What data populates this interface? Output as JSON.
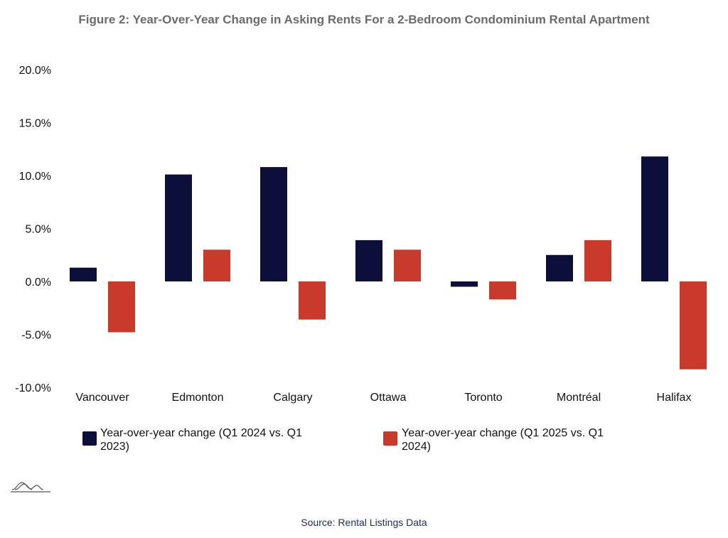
{
  "chart_data": {
    "type": "bar",
    "title": "Figure 2: Year-Over-Year Change in Asking Rents For a 2-Bedroom Condominium Rental Apartment",
    "categories": [
      "Vancouver",
      "Edmonton",
      "Calgary",
      "Ottawa",
      "Toronto",
      "Montréal",
      "Halifax"
    ],
    "series": [
      {
        "name": "Year-over-year change (Q1 2024 vs. Q1 2023)",
        "name_lines": [
          "Year-over-year change (Q1 2024 vs. Q1",
          "2023)"
        ],
        "color": "#0b0f3a",
        "values": [
          1.3,
          10.1,
          10.8,
          3.9,
          -0.5,
          2.5,
          11.8
        ]
      },
      {
        "name": "Year-over-year change (Q1 2025 vs. Q1 2024)",
        "name_lines": [
          "Year-over-year change (Q1 2025 vs. Q1",
          "2024)"
        ],
        "color": "#c93a2b",
        "values": [
          -4.8,
          3.0,
          -3.6,
          3.0,
          -1.7,
          3.9,
          -8.3
        ]
      }
    ],
    "ylim": [
      -10,
      20
    ],
    "yticks": [
      20,
      15,
      10,
      5,
      0,
      -5,
      -10
    ],
    "ytick_labels": [
      "20.0%",
      "15.0%",
      "10.0%",
      "5.0%",
      "0.0%",
      "-5.0%",
      "-10.0%"
    ],
    "xlabel": "",
    "ylabel": "",
    "grid": false,
    "legend_position": "bottom"
  },
  "source": "Source: Rental Listings Data",
  "logo_icon": "mountain-logo-icon"
}
